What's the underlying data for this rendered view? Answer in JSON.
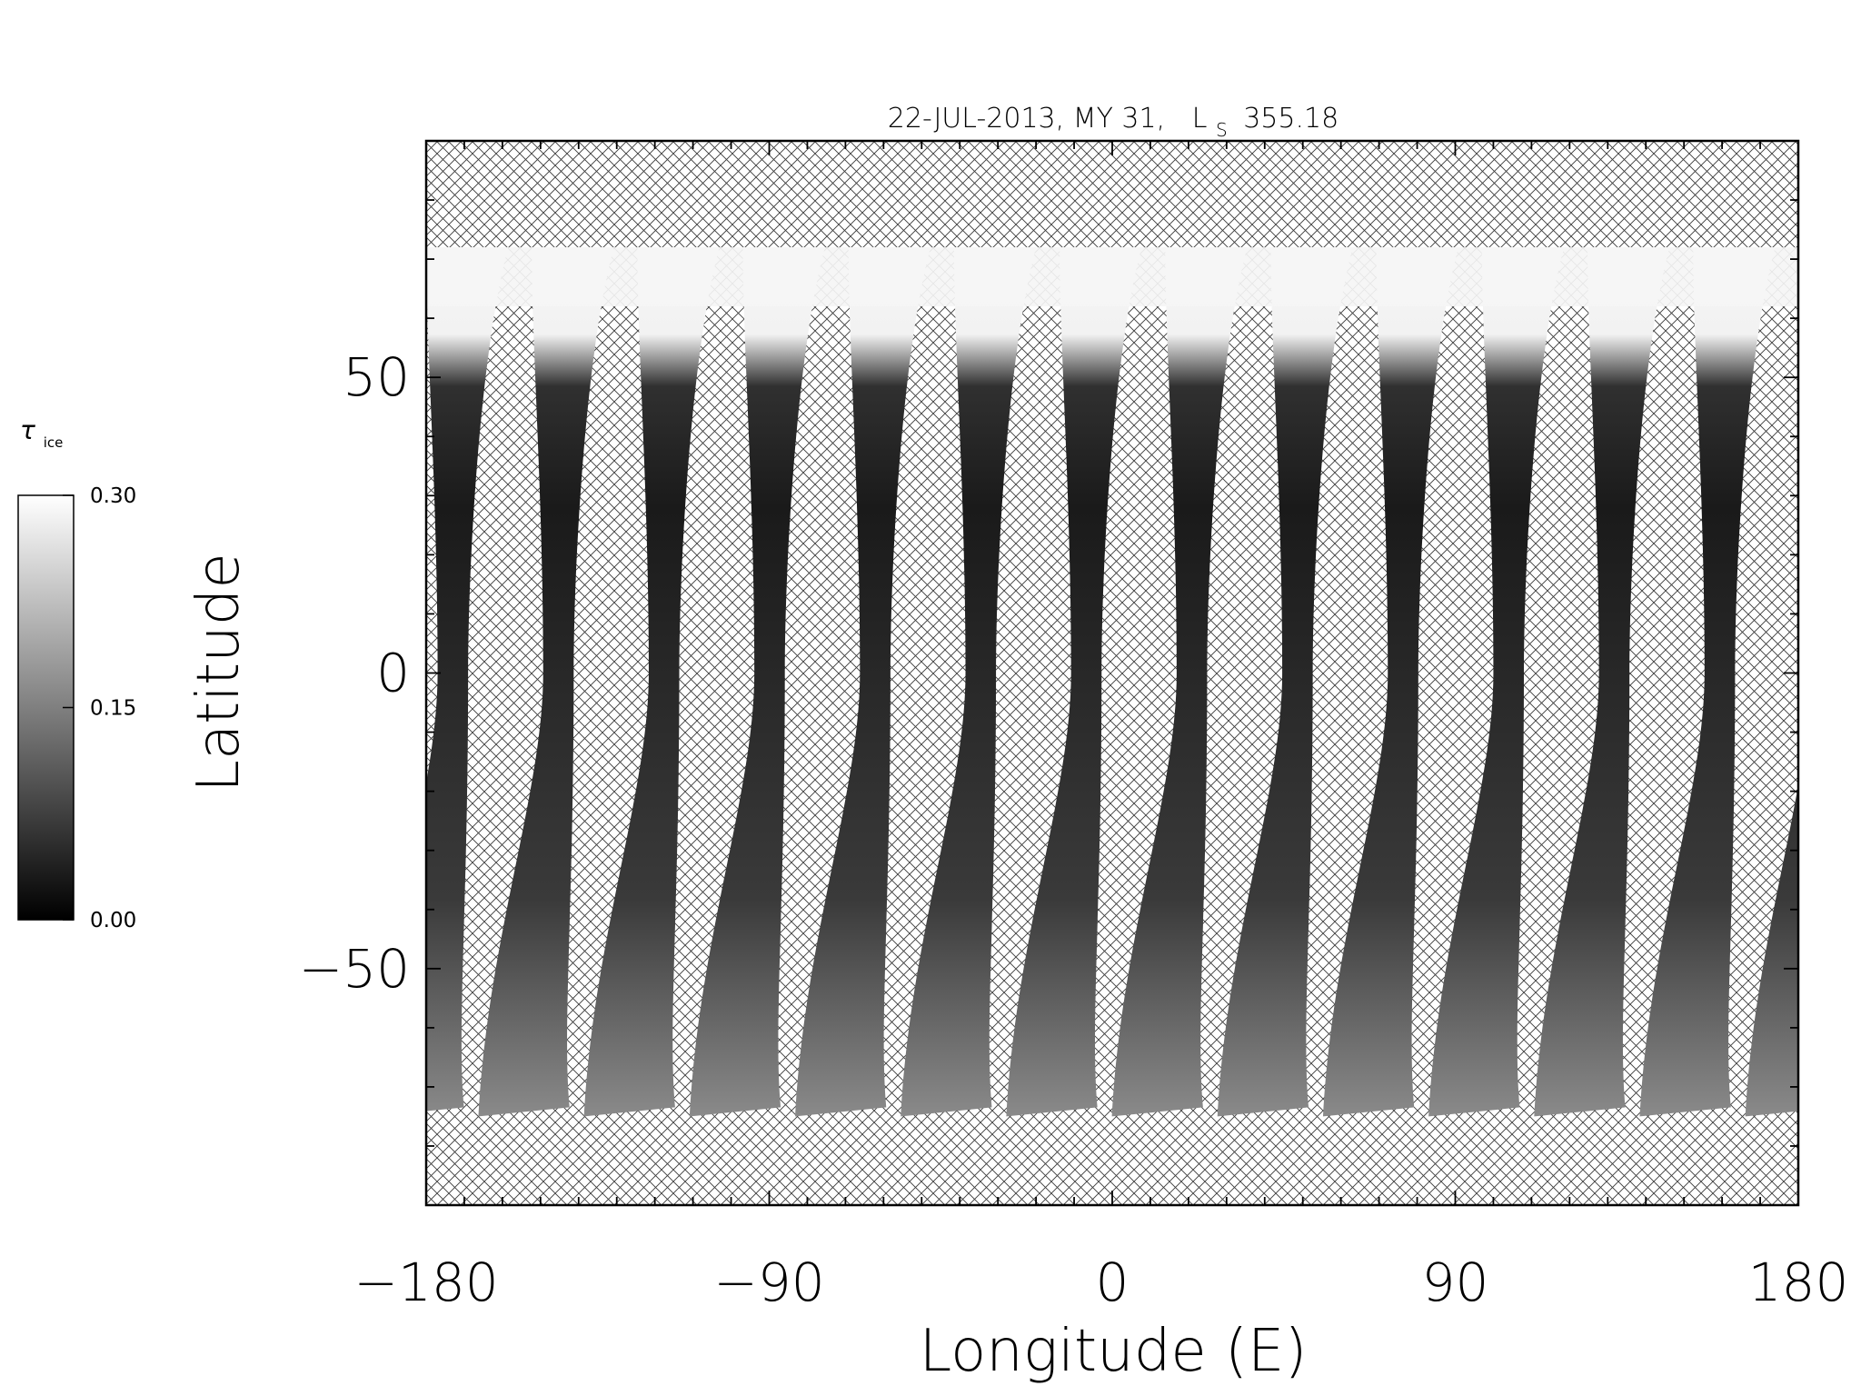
{
  "chart_data": {
    "type": "heatmap",
    "title_prefix": "22-JUL-2013, MY 31,",
    "title_ls_letter": "L",
    "title_ls_sub": "S",
    "title_ls_value": "355.18",
    "xlabel": "Longitude (E)",
    "ylabel": "Latitude",
    "xlim": [
      -180,
      180
    ],
    "ylim": [
      -90,
      90
    ],
    "x_ticks": [
      -180,
      -90,
      0,
      90,
      180
    ],
    "x_tick_labels": [
      "−180",
      "−90",
      "0",
      "90",
      "180"
    ],
    "y_ticks": [
      -50,
      0,
      50
    ],
    "y_tick_labels": [
      "−50",
      "0",
      "50"
    ],
    "colorbar": {
      "label": "τ",
      "label_sub": "ice",
      "min": 0.0,
      "max": 0.3,
      "ticks": [
        "0.00",
        "0.15",
        "0.30"
      ],
      "colormap": "grayscale"
    },
    "no_data_pattern": "crosshatch",
    "swath_count": 13,
    "swath_spacing_deg": 27.7,
    "swath_lat_range": [
      -75,
      72
    ]
  }
}
